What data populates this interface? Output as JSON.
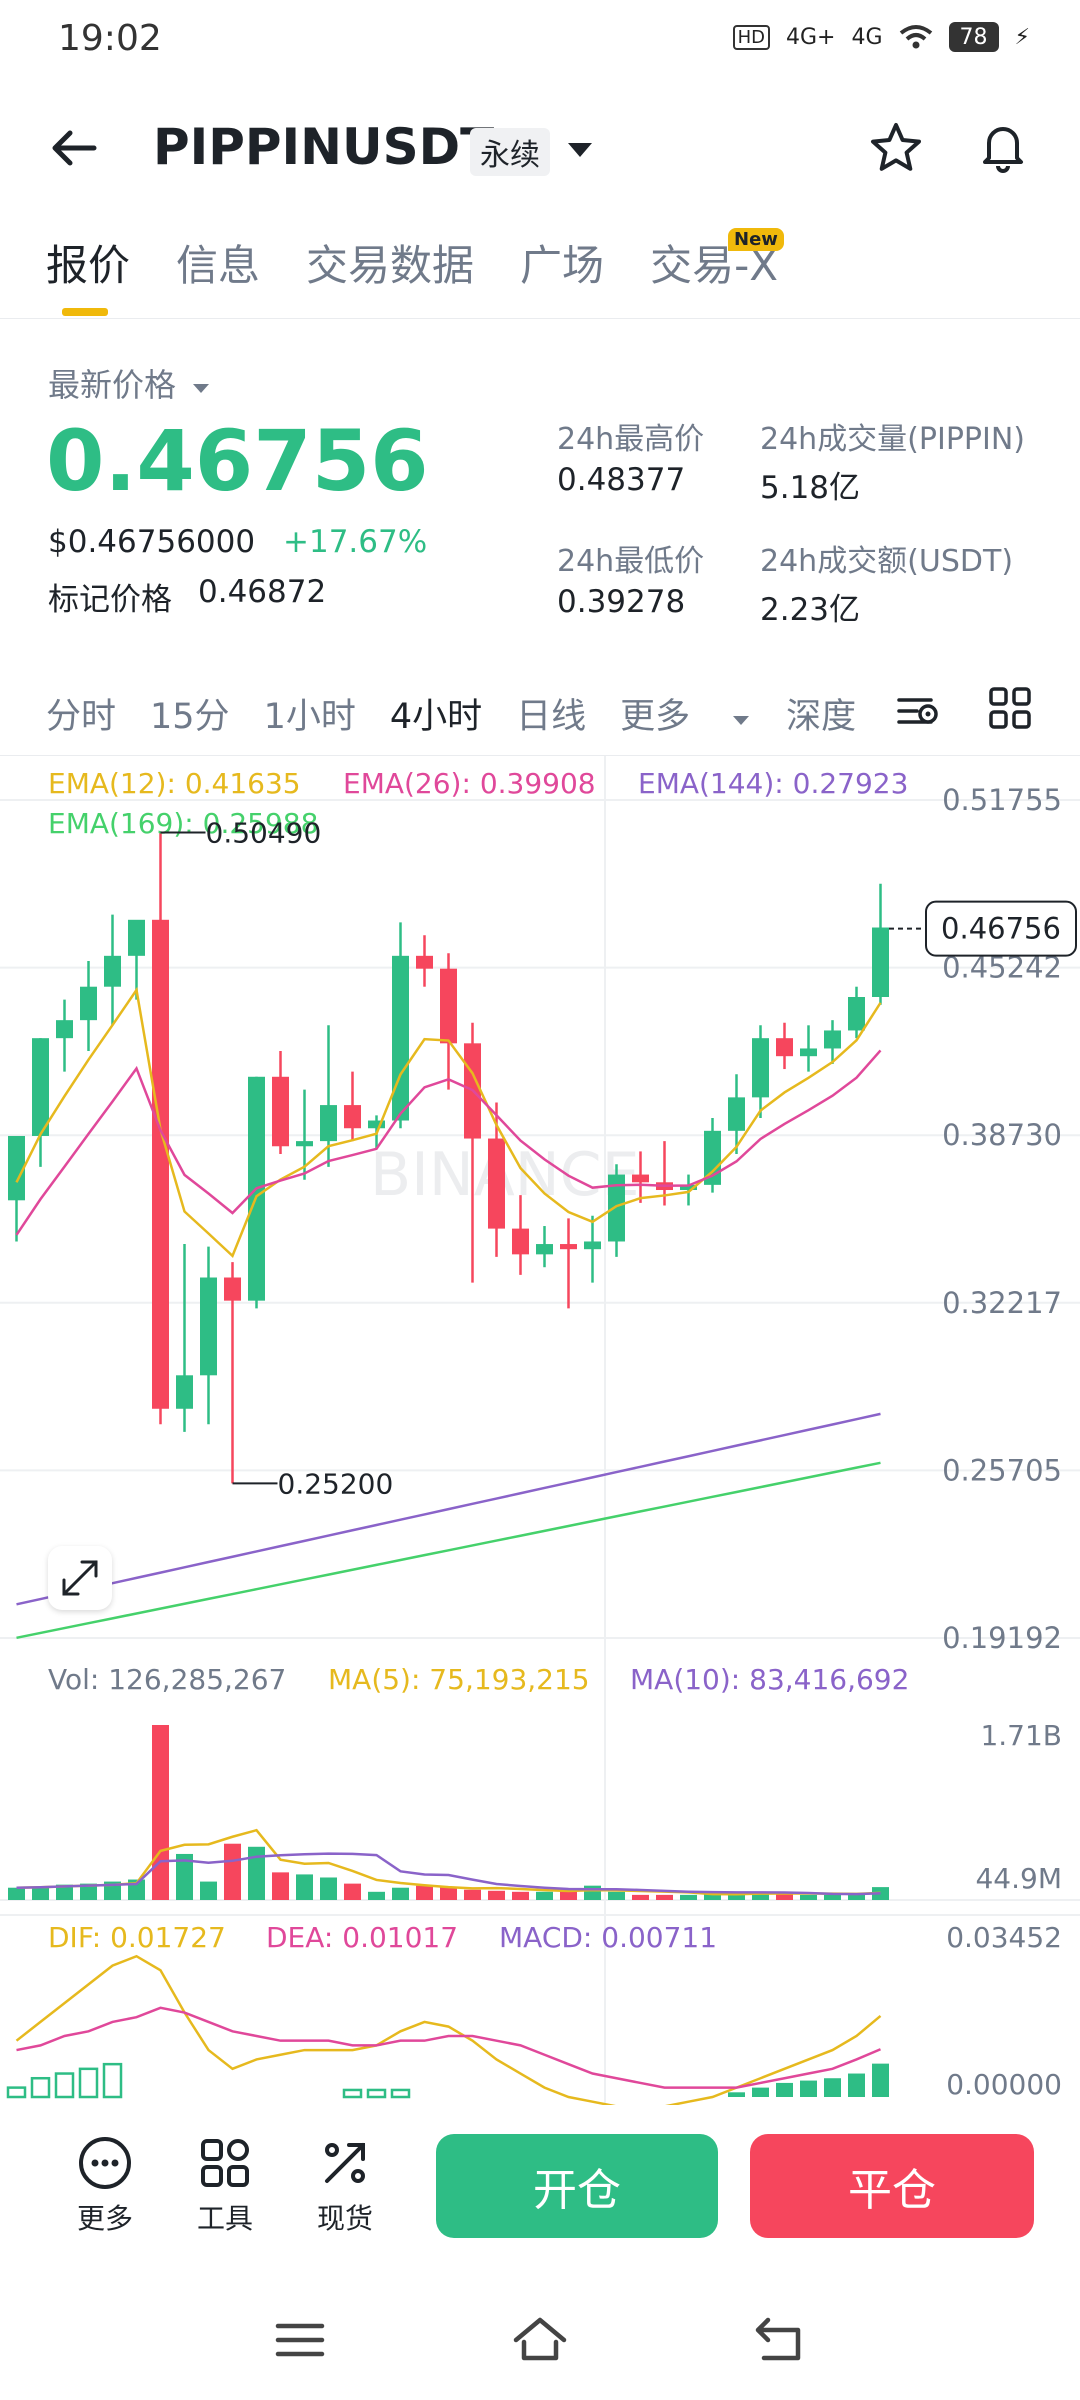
{
  "status": {
    "time": "19:02",
    "battery": "78",
    "net1": "HD",
    "net2": "4G+",
    "net3": "4G"
  },
  "header": {
    "title": "PIPPINUSDT",
    "badge": "永续"
  },
  "tabs": [
    {
      "label": "报价",
      "active": true
    },
    {
      "label": "信息"
    },
    {
      "label": "交易数据"
    },
    {
      "label": "广场"
    },
    {
      "label": "交易-X",
      "badge": "New"
    }
  ],
  "price": {
    "latest_label": "最新价格",
    "last": "0.46756",
    "usd": "$0.46756000",
    "change": "+17.67%",
    "mark_label": "标记价格",
    "mark": "0.46872"
  },
  "stats": {
    "high_label": "24h最高价",
    "high": "0.48377",
    "low_label": "24h最低价",
    "low": "0.39278",
    "vol_label": "24h成交量(PIPPIN)",
    "vol": "5.18亿",
    "amt_label": "24h成交额(USDT)",
    "amt": "2.23亿"
  },
  "intervals": [
    "分时",
    "15分",
    "1小时",
    "4小时",
    "日线",
    "更多",
    "深度"
  ],
  "active_interval": "4小时",
  "chart_data": {
    "type": "candlestick",
    "price_axis_labels": [
      "0.51755",
      "0.45242",
      "0.38730",
      "0.32217",
      "0.25705",
      "0.19192"
    ],
    "ema_legend": [
      {
        "text": "EMA(12): 0.41635",
        "color": "#e6b91e"
      },
      {
        "text": "EMA(26): 0.39908",
        "color": "#e0489a"
      },
      {
        "text": "EMA(144): 0.27923",
        "color": "#8a63c9"
      },
      {
        "text": "EMA(169): 0.25988",
        "color": "#45d16b"
      }
    ],
    "high_marker": "0.50490",
    "low_marker": "0.25200",
    "last_price_tag": "0.46756",
    "candles": [
      {
        "o": 0.362,
        "h": 0.387,
        "l": 0.346,
        "c": 0.387
      },
      {
        "o": 0.387,
        "h": 0.425,
        "l": 0.375,
        "c": 0.425
      },
      {
        "o": 0.425,
        "h": 0.44,
        "l": 0.412,
        "c": 0.432
      },
      {
        "o": 0.432,
        "h": 0.455,
        "l": 0.42,
        "c": 0.445
      },
      {
        "o": 0.445,
        "h": 0.473,
        "l": 0.43,
        "c": 0.457
      },
      {
        "o": 0.457,
        "h": 0.469,
        "l": 0.44,
        "c": 0.471
      },
      {
        "o": 0.471,
        "h": 0.505,
        "l": 0.275,
        "c": 0.281
      },
      {
        "o": 0.281,
        "h": 0.345,
        "l": 0.272,
        "c": 0.294
      },
      {
        "o": 0.294,
        "h": 0.344,
        "l": 0.275,
        "c": 0.332
      },
      {
        "o": 0.332,
        "h": 0.338,
        "l": 0.252,
        "c": 0.323
      },
      {
        "o": 0.323,
        "h": 0.41,
        "l": 0.32,
        "c": 0.41
      },
      {
        "o": 0.41,
        "h": 0.42,
        "l": 0.38,
        "c": 0.383
      },
      {
        "o": 0.383,
        "h": 0.405,
        "l": 0.37,
        "c": 0.385
      },
      {
        "o": 0.385,
        "h": 0.43,
        "l": 0.375,
        "c": 0.399
      },
      {
        "o": 0.399,
        "h": 0.412,
        "l": 0.385,
        "c": 0.39
      },
      {
        "o": 0.39,
        "h": 0.395,
        "l": 0.382,
        "c": 0.393
      },
      {
        "o": 0.393,
        "h": 0.47,
        "l": 0.39,
        "c": 0.457
      },
      {
        "o": 0.457,
        "h": 0.465,
        "l": 0.445,
        "c": 0.452
      },
      {
        "o": 0.452,
        "h": 0.458,
        "l": 0.405,
        "c": 0.423
      },
      {
        "o": 0.423,
        "h": 0.431,
        "l": 0.33,
        "c": 0.386
      },
      {
        "o": 0.386,
        "h": 0.4,
        "l": 0.34,
        "c": 0.351
      },
      {
        "o": 0.351,
        "h": 0.364,
        "l": 0.333,
        "c": 0.341
      },
      {
        "o": 0.341,
        "h": 0.352,
        "l": 0.336,
        "c": 0.345
      },
      {
        "o": 0.345,
        "h": 0.355,
        "l": 0.32,
        "c": 0.343
      },
      {
        "o": 0.343,
        "h": 0.356,
        "l": 0.33,
        "c": 0.346
      },
      {
        "o": 0.346,
        "h": 0.376,
        "l": 0.34,
        "c": 0.372
      },
      {
        "o": 0.372,
        "h": 0.381,
        "l": 0.361,
        "c": 0.369
      },
      {
        "o": 0.369,
        "h": 0.385,
        "l": 0.36,
        "c": 0.366
      },
      {
        "o": 0.366,
        "h": 0.372,
        "l": 0.36,
        "c": 0.368
      },
      {
        "o": 0.368,
        "h": 0.394,
        "l": 0.365,
        "c": 0.389
      },
      {
        "o": 0.389,
        "h": 0.411,
        "l": 0.38,
        "c": 0.402
      },
      {
        "o": 0.402,
        "h": 0.43,
        "l": 0.394,
        "c": 0.425
      },
      {
        "o": 0.425,
        "h": 0.431,
        "l": 0.413,
        "c": 0.418
      },
      {
        "o": 0.418,
        "h": 0.43,
        "l": 0.412,
        "c": 0.421
      },
      {
        "o": 0.421,
        "h": 0.432,
        "l": 0.415,
        "c": 0.428
      },
      {
        "o": 0.428,
        "h": 0.445,
        "l": 0.425,
        "c": 0.441
      },
      {
        "o": 0.441,
        "h": 0.485,
        "l": 0.438,
        "c": 0.468
      }
    ],
    "volume_legend": [
      {
        "text": "Vol: 126,285,267",
        "color": "#707a8a"
      },
      {
        "text": "MA(5): 75,193,215",
        "color": "#e6b91e"
      },
      {
        "text": "MA(10): 83,416,692",
        "color": "#8a63c9"
      }
    ],
    "volume_axis_labels": [
      "1.71B",
      "44.9M"
    ],
    "volumes": [
      0.12,
      0.13,
      0.15,
      0.16,
      0.18,
      0.2,
      1.71,
      0.45,
      0.18,
      0.55,
      0.52,
      0.27,
      0.25,
      0.22,
      0.16,
      0.08,
      0.12,
      0.14,
      0.13,
      0.1,
      0.09,
      0.08,
      0.08,
      0.09,
      0.14,
      0.08,
      0.05,
      0.05,
      0.05,
      0.06,
      0.07,
      0.08,
      0.06,
      0.05,
      0.05,
      0.06,
      0.126
    ],
    "macd_legend": [
      {
        "text": "DIF: 0.01727",
        "color": "#e6b91e"
      },
      {
        "text": "DEA: 0.01017",
        "color": "#e0489a"
      },
      {
        "text": "MACD: 0.00711",
        "color": "#8a63c9"
      }
    ],
    "macd_axis_labels": [
      "0.03452",
      "0.00000"
    ]
  },
  "bottom_nav": {
    "more": "更多",
    "tools": "工具",
    "spot": "现货",
    "open": "开仓",
    "close": "平仓"
  },
  "colors": {
    "up": "#2ebd85",
    "down": "#f6465d",
    "accent": "#f0b90b"
  }
}
